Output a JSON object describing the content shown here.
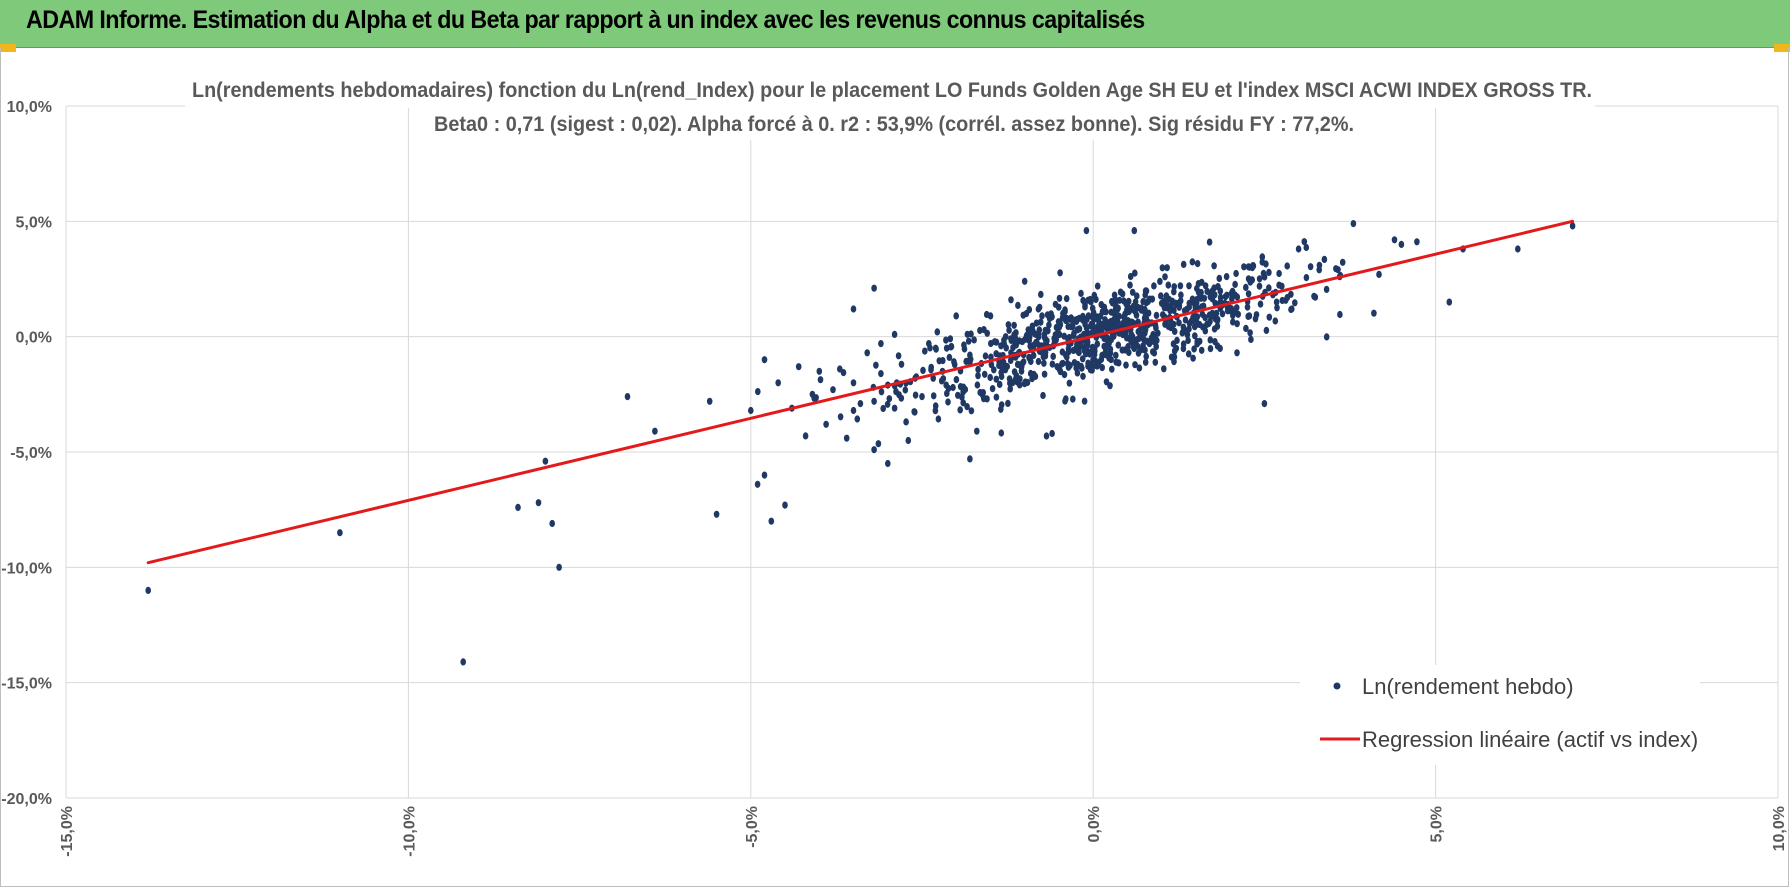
{
  "header": {
    "title": "ADAM Informe. Estimation du Alpha et du Beta par rapport à un index avec les revenus connus capitalisés"
  },
  "colors": {
    "banner": "#7fc97a",
    "corner_accent": "#f2b51c",
    "points": "#1f3864",
    "regression": "#e31a1c",
    "grid": "#d9d9d9"
  },
  "chart_data": {
    "type": "scatter",
    "title": "Ln(rendements hebdomadaires) fonction du Ln(rend_Index) pour le placement LO Funds Golden Age SH EU et l'index MSCI ACWI INDEX GROSS TR.",
    "subtitle": "Beta0 : 0,71  (sigest : 0,02).  Alpha forcé à 0.  r2 : 53,9% (corrél. assez bonne). Sig résidu FY : 77,2%.",
    "xlabel": "",
    "ylabel": "",
    "xlim": [
      -15,
      10
    ],
    "ylim": [
      -20,
      10
    ],
    "x_ticks": [
      -15,
      -10,
      -5,
      0,
      5,
      10
    ],
    "y_ticks": [
      10,
      5,
      0,
      -5,
      -10,
      -15,
      -20
    ],
    "x_tick_labels": [
      "-15,0%",
      "-10,0%",
      "-5,0%",
      "0,0%",
      "5,0%",
      "10,0%"
    ],
    "y_tick_labels": [
      "10,0%",
      "5,0%",
      "0,0%",
      "-5,0%",
      "-10,0%",
      "-15,0%",
      "-20,0%"
    ],
    "grid": true,
    "legend_position": "bottom-right",
    "series": [
      {
        "name": "Ln(rendement hebdo)",
        "kind": "scatter",
        "x": [
          -13.8,
          -11.0,
          -9.2,
          -8.4,
          -8.1,
          -8.0,
          -7.9,
          -7.8,
          -6.8,
          -6.4,
          -5.6,
          -5.5,
          -5.0,
          -4.9,
          -4.8,
          -4.8,
          -4.7,
          -4.6,
          -4.5,
          -4.4,
          -4.3,
          -4.2,
          -4.1,
          -4.0,
          -3.9,
          -3.8,
          -3.7,
          -3.6,
          -3.5,
          -3.5,
          -3.4,
          -3.3,
          -3.2,
          -3.2,
          -3.1,
          -3.1,
          -3.0,
          -3.0,
          -2.9,
          -2.9,
          -2.8,
          -2.7,
          -2.6,
          -2.5,
          -2.4,
          -2.3,
          -2.2,
          -2.1,
          -2.0,
          -1.9,
          -1.8,
          -1.8,
          -1.7,
          -3.5,
          -3.2,
          -1.8,
          -0.1,
          0.6,
          1.7,
          -0.4,
          4.4,
          5.2,
          6.2,
          5.4,
          7.0,
          3.8,
          4.5,
          3.6,
          3.3,
          3.0,
          2.9,
          2.5,
          2.1,
          -2.3,
          -1.5,
          -1.2,
          -1.0,
          -0.8,
          -0.6,
          -0.4
        ],
        "y": [
          -11.0,
          -8.5,
          -14.1,
          -7.4,
          -7.2,
          -5.4,
          -8.1,
          -10.0,
          -2.6,
          -4.1,
          -2.8,
          -7.7,
          -3.2,
          -6.4,
          -6.0,
          -1.0,
          -8.0,
          -2.0,
          -7.3,
          -3.1,
          -1.3,
          -4.3,
          -2.5,
          -1.5,
          -3.8,
          -2.3,
          -1.4,
          -4.4,
          -2.0,
          1.2,
          -2.9,
          -0.7,
          -2.8,
          -4.9,
          -1.6,
          -0.3,
          -2.1,
          -5.5,
          -3.1,
          0.1,
          -1.2,
          -4.5,
          -1.8,
          -2.6,
          -0.3,
          -3.0,
          -1.5,
          -0.9,
          0.9,
          -2.4,
          -5.3,
          -0.8,
          -4.1,
          -3.2,
          2.1,
          -1.1,
          4.6,
          4.6,
          4.1,
          0.7,
          4.2,
          1.5,
          3.8,
          3.8,
          4.8,
          4.9,
          4.0,
          2.6,
          2.9,
          3.8,
          1.2,
          -2.9,
          -0.7,
          -0.5,
          0.9,
          1.6,
          2.4,
          1.2,
          -4.2,
          -2.7
        ]
      },
      {
        "name": "Regression linéaire (actif vs index)",
        "kind": "line",
        "x": [
          -13.8,
          7.0
        ],
        "y": [
          -9.8,
          5.0
        ]
      }
    ]
  }
}
